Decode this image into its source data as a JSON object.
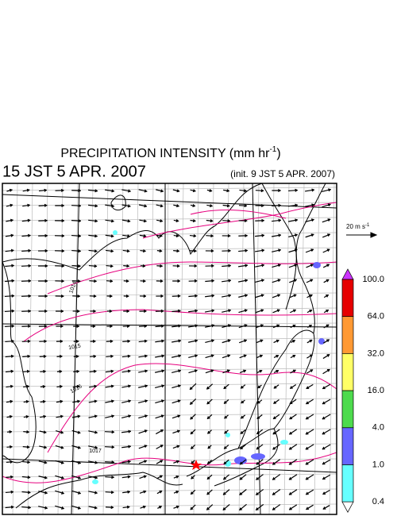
{
  "header": {
    "title": "PRECIPITATION INTENSITY (mm hr",
    "title_superscript": "-1",
    "title_suffix": ")",
    "valid_time": "15 JST 5 APR. 2007",
    "init_time": "(init. 9 JST 5 APR. 2007)"
  },
  "wind_scale": {
    "label": "20 m s",
    "superscript": "-1"
  },
  "colorbar": {
    "labels": [
      "100.0",
      "64.0",
      "32.0",
      "16.0",
      "4.0",
      "1.0",
      "0.4"
    ],
    "colors": [
      "#e60000",
      "#ff9933",
      "#ffff66",
      "#4ddb4d",
      "#6666ff",
      "#66ffff"
    ],
    "over_color": "#cc33ff",
    "under_color": "#ffffff"
  },
  "isobar_labels": [
    1014,
    1015,
    1016,
    1017
  ]
}
